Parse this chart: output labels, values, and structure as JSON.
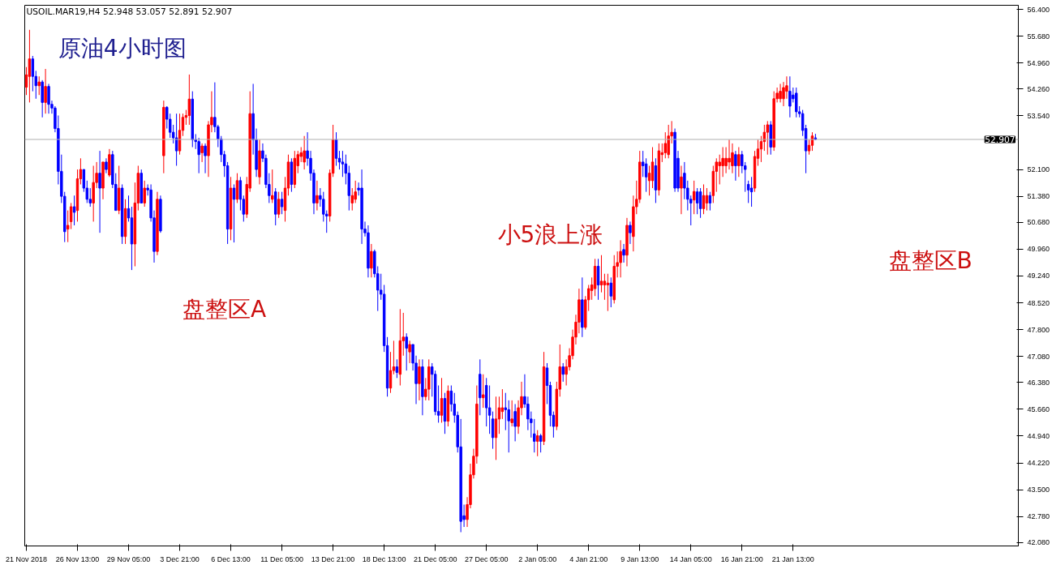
{
  "chart_data": {
    "type": "candlestick",
    "title": "USOIL.MAR19,H4  52.948 53.057 52.891 52.907",
    "annotations": [
      "原油4小时图",
      "盘整区A",
      "小5浪上涨",
      "盘整区B"
    ],
    "categories": [
      "21 Nov 2018",
      null,
      null,
      null,
      null,
      null,
      null,
      null,
      null,
      null,
      null,
      null,
      null,
      null,
      null,
      null,
      "26 Nov 13:00",
      null,
      null,
      null,
      null,
      null,
      null,
      null,
      null,
      null,
      null,
      null,
      null,
      null,
      null,
      null,
      "29 Nov 05:00",
      null,
      null,
      null,
      null,
      null,
      null,
      null,
      null,
      null,
      null,
      null,
      null,
      null,
      null,
      null,
      "3 Dec 21:00",
      null,
      null,
      null,
      null,
      null,
      null,
      null,
      null,
      null,
      null,
      null,
      null,
      null,
      null,
      null,
      "6 Dec 13:00",
      null,
      null,
      null,
      null,
      null,
      null,
      null,
      null,
      null,
      null,
      null,
      null,
      null,
      null,
      null,
      "11 Dec 05:00",
      null,
      null,
      null,
      null,
      null,
      null,
      null,
      null,
      null,
      null,
      null,
      null,
      null,
      null,
      null,
      "13 Dec 21:00",
      null,
      null,
      null,
      null,
      null,
      null,
      null,
      null,
      null,
      null,
      null,
      null,
      null,
      null,
      null,
      "18 Dec 13:00",
      null,
      null,
      null,
      null,
      null,
      null,
      null,
      null,
      null,
      null,
      null,
      null,
      null,
      null,
      null,
      "21 Dec 05:00",
      null,
      null,
      null,
      null,
      null,
      null,
      null,
      null,
      null,
      null,
      null,
      null,
      null,
      null,
      null,
      "27 Dec 05:00",
      null,
      null,
      null,
      null,
      null,
      null,
      null,
      null,
      null,
      null,
      null,
      null,
      null,
      null,
      null,
      "2 Jan 05:00",
      null,
      null,
      null,
      null,
      null,
      null,
      null,
      null,
      null,
      null,
      null,
      null,
      null,
      null,
      null,
      "4 Jan 21:00",
      null,
      null,
      null,
      null,
      null,
      null,
      null,
      null,
      null,
      null,
      null,
      null,
      null,
      null,
      null,
      "9 Jan 13:00",
      null,
      null,
      null,
      null,
      null,
      null,
      null,
      null,
      null,
      null,
      null,
      null,
      null,
      null,
      null,
      "14 Jan 05:00",
      null,
      null,
      null,
      null,
      null,
      null,
      null,
      null,
      null,
      null,
      null,
      null,
      null,
      null,
      null,
      "16 Jan 21:00",
      null,
      null,
      null,
      null,
      null,
      null,
      null,
      null,
      null,
      null,
      null,
      null,
      null,
      null,
      null,
      "21 Jan 13:00",
      null,
      null,
      null,
      null,
      null,
      null,
      null,
      null,
      null,
      null,
      null,
      null,
      null,
      null,
      null,
      null,
      null,
      null,
      null,
      null,
      null,
      null,
      null,
      null,
      null,
      null,
      null,
      null,
      null,
      null,
      null,
      null,
      null,
      null,
      null,
      null,
      null,
      null,
      null,
      null,
      null,
      null,
      null,
      null,
      null,
      null,
      null,
      null,
      null,
      null,
      null,
      null,
      null,
      null,
      null,
      null,
      null,
      null,
      null,
      null,
      null,
      null,
      null,
      null,
      null,
      null,
      null,
      null,
      null,
      null
    ],
    "ohlc": [
      [
        54.31,
        54.85,
        54.1,
        54.64
      ],
      [
        54.6,
        55.85,
        53.9,
        55.07
      ],
      [
        55.07,
        55.15,
        54.2,
        54.6
      ],
      [
        54.6,
        54.75,
        54.0,
        54.35
      ],
      [
        54.35,
        54.6,
        54.1,
        54.45
      ],
      [
        54.45,
        54.5,
        53.5,
        53.9
      ],
      [
        53.9,
        54.8,
        53.6,
        54.33
      ],
      [
        54.33,
        54.4,
        53.6,
        53.85
      ],
      [
        53.85,
        53.95,
        53.6,
        53.75
      ],
      [
        53.75,
        53.8,
        53.1,
        53.2
      ],
      [
        53.2,
        53.55,
        51.7,
        52.05
      ],
      [
        52.05,
        52.5,
        51.2,
        51.38
      ],
      [
        51.38,
        51.5,
        50.15,
        50.43
      ],
      [
        50.5,
        51.0,
        50.15,
        50.6
      ],
      [
        50.7,
        51.2,
        50.5,
        51.1
      ],
      [
        51.1,
        51.4,
        50.6,
        50.95
      ],
      [
        51.0,
        52.1,
        50.7,
        51.85
      ],
      [
        51.85,
        52.4,
        51.7,
        52.1
      ],
      [
        52.1,
        52.1,
        51.5,
        51.6
      ],
      [
        51.6,
        51.8,
        51.2,
        51.3
      ],
      [
        51.3,
        51.6,
        51.1,
        51.2
      ],
      [
        51.2,
        52.2,
        50.7,
        51.75
      ],
      [
        51.75,
        52.3,
        51.6,
        52.0
      ],
      [
        52.0,
        52.6,
        50.4,
        51.6
      ],
      [
        51.6,
        52.3,
        51.3,
        52.3
      ],
      [
        52.3,
        52.4,
        52.0,
        52.1
      ],
      [
        51.95,
        52.65,
        51.9,
        52.5
      ],
      [
        52.5,
        52.6,
        51.6,
        51.7
      ],
      [
        51.7,
        52.0,
        51.0,
        51.0
      ],
      [
        51.0,
        52.2,
        50.9,
        51.6
      ],
      [
        51.6,
        51.7,
        50.1,
        50.3
      ],
      [
        50.3,
        51.3,
        50.1,
        51.05
      ],
      [
        51.05,
        51.4,
        50.7,
        50.8
      ],
      [
        50.8,
        51.1,
        49.4,
        50.1
      ],
      [
        50.1,
        51.75,
        49.5,
        51.2
      ],
      [
        51.2,
        52.2,
        51.0,
        52.0
      ],
      [
        52.0,
        52.1,
        51.2,
        51.2
      ],
      [
        51.2,
        51.8,
        51.1,
        51.6
      ],
      [
        51.6,
        51.7,
        51.4,
        51.55
      ],
      [
        51.55,
        51.7,
        50.7,
        50.8
      ],
      [
        50.8,
        51.0,
        49.6,
        49.9
      ],
      [
        49.9,
        51.5,
        49.8,
        51.3
      ],
      [
        51.3,
        51.4,
        50.4,
        50.45
      ],
      [
        52.47,
        53.95,
        52.0,
        53.77
      ],
      [
        53.77,
        53.8,
        53.2,
        53.45
      ],
      [
        53.45,
        53.6,
        52.95,
        53.1
      ],
      [
        53.1,
        53.3,
        52.8,
        52.95
      ],
      [
        52.95,
        53.6,
        52.2,
        52.6
      ],
      [
        52.6,
        53.6,
        52.5,
        53.15
      ],
      [
        53.15,
        53.6,
        53.0,
        53.5
      ],
      [
        53.5,
        53.7,
        53.3,
        53.55
      ],
      [
        53.55,
        54.65,
        53.3,
        53.99
      ],
      [
        53.99,
        54.2,
        52.7,
        52.9
      ],
      [
        52.9,
        53.05,
        52.65,
        52.85
      ],
      [
        52.85,
        52.95,
        52.0,
        52.5
      ],
      [
        52.55,
        52.8,
        52.3,
        52.73
      ],
      [
        52.73,
        52.8,
        52.0,
        52.47
      ],
      [
        52.47,
        53.4,
        51.9,
        53.3
      ],
      [
        53.3,
        54.2,
        53.1,
        53.5
      ],
      [
        53.5,
        54.44,
        53.1,
        53.25
      ],
      [
        53.25,
        53.3,
        52.7,
        52.92
      ],
      [
        52.92,
        53.0,
        52.3,
        52.5
      ],
      [
        52.5,
        52.6,
        51.9,
        52.2
      ],
      [
        52.2,
        52.3,
        50.1,
        50.5
      ],
      [
        50.5,
        51.9,
        50.2,
        51.6
      ],
      [
        51.6,
        51.7,
        50.14,
        51.3
      ],
      [
        51.3,
        52.0,
        51.2,
        51.8
      ],
      [
        51.8,
        51.9,
        51.0,
        51.3
      ],
      [
        51.3,
        51.4,
        50.7,
        50.9
      ],
      [
        50.9,
        51.9,
        50.8,
        51.7
      ],
      [
        51.6,
        54.2,
        51.5,
        53.6
      ],
      [
        53.6,
        54.4,
        52.5,
        52.9
      ],
      [
        52.9,
        53.2,
        51.9,
        52.1
      ],
      [
        51.9,
        52.9,
        51.7,
        52.6
      ],
      [
        52.6,
        52.8,
        52.3,
        52.4
      ],
      [
        52.4,
        52.5,
        51.6,
        51.7
      ],
      [
        51.7,
        52.0,
        51.2,
        51.4
      ],
      [
        51.3,
        52.1,
        51.2,
        51.4
      ],
      [
        51.5,
        51.6,
        50.6,
        50.9
      ],
      [
        50.9,
        51.5,
        50.8,
        51.3
      ],
      [
        51.3,
        51.5,
        50.9,
        51.1
      ],
      [
        51.0,
        51.9,
        50.7,
        51.6
      ],
      [
        51.6,
        52.5,
        51.4,
        52.3
      ],
      [
        52.3,
        52.4,
        51.5,
        51.7
      ],
      [
        51.7,
        52.6,
        51.6,
        52.4
      ],
      [
        52.2,
        52.6,
        52.0,
        52.5
      ],
      [
        52.45,
        52.7,
        52.3,
        52.55
      ],
      [
        52.3,
        53.0,
        52.1,
        52.6
      ],
      [
        52.6,
        53.1,
        52.2,
        52.4
      ],
      [
        52.4,
        52.6,
        51.8,
        52.0
      ],
      [
        52.0,
        52.1,
        50.9,
        51.2
      ],
      [
        51.2,
        51.8,
        51.0,
        51.4
      ],
      [
        51.4,
        51.6,
        51.1,
        51.3
      ],
      [
        51.3,
        51.5,
        50.7,
        50.9
      ],
      [
        50.9,
        51.0,
        50.4,
        50.85
      ],
      [
        50.85,
        52.1,
        50.7,
        52.0
      ],
      [
        52.0,
        53.3,
        51.9,
        52.9
      ],
      [
        52.9,
        53.1,
        52.2,
        52.4
      ],
      [
        52.4,
        52.6,
        52.1,
        52.3
      ],
      [
        52.3,
        52.6,
        51.9,
        52.25
      ],
      [
        52.25,
        52.5,
        51.7,
        52.0
      ],
      [
        52.0,
        52.2,
        51.0,
        51.4
      ],
      [
        51.2,
        51.6,
        51.0,
        51.4
      ],
      [
        51.3,
        51.8,
        51.2,
        51.5
      ],
      [
        51.6,
        51.75,
        51.4,
        51.55
      ],
      [
        51.6,
        52.1,
        50.1,
        50.5
      ],
      [
        50.5,
        50.7,
        50.3,
        50.4
      ],
      [
        50.4,
        50.6,
        49.2,
        49.45
      ],
      [
        49.45,
        50.1,
        49.2,
        49.9
      ],
      [
        49.9,
        49.95,
        49.2,
        49.3
      ],
      [
        49.3,
        49.5,
        48.3,
        48.86
      ],
      [
        48.86,
        49.3,
        48.6,
        48.75
      ],
      [
        48.75,
        49.0,
        47.2,
        47.37
      ],
      [
        47.37,
        47.6,
        46.0,
        46.23
      ],
      [
        46.23,
        47.2,
        46.1,
        46.7
      ],
      [
        46.7,
        47.5,
        46.6,
        46.8
      ],
      [
        46.8,
        47.0,
        46.5,
        46.65
      ],
      [
        46.6,
        48.35,
        46.3,
        47.5
      ],
      [
        47.5,
        48.25,
        47.1,
        47.6
      ],
      [
        47.6,
        47.7,
        46.7,
        47.3
      ],
      [
        47.2,
        47.5,
        46.9,
        47.4
      ],
      [
        47.4,
        47.4,
        46.7,
        46.9
      ],
      [
        46.9,
        47.1,
        45.8,
        46.35
      ],
      [
        46.35,
        47.0,
        45.9,
        46.8
      ],
      [
        46.8,
        47.0,
        45.5,
        46.0
      ],
      [
        46.0,
        46.5,
        45.9,
        46.2
      ],
      [
        46.2,
        47.0,
        45.9,
        46.8
      ],
      [
        46.8,
        46.9,
        46.0,
        46.6
      ],
      [
        46.6,
        46.7,
        45.5,
        45.6
      ],
      [
        45.6,
        46.3,
        45.3,
        45.5
      ],
      [
        45.5,
        46.5,
        45.3,
        45.95
      ],
      [
        45.95,
        46.1,
        45.0,
        45.34
      ],
      [
        45.34,
        46.3,
        45.2,
        46.15
      ],
      [
        46.15,
        46.3,
        45.6,
        45.8
      ],
      [
        45.8,
        46.1,
        45.3,
        45.5
      ],
      [
        45.5,
        45.6,
        44.5,
        44.65
      ],
      [
        44.65,
        45.4,
        42.36,
        42.65
      ],
      [
        42.8,
        43.1,
        42.5,
        42.7
      ],
      [
        42.7,
        43.3,
        42.5,
        43.1
      ],
      [
        43.1,
        44.2,
        43.0,
        43.9
      ],
      [
        43.9,
        44.6,
        43.8,
        44.4
      ],
      [
        44.4,
        46.3,
        44.2,
        45.8
      ],
      [
        46.6,
        47.0,
        45.5,
        45.97
      ],
      [
        45.97,
        46.6,
        45.7,
        46.05
      ],
      [
        46.3,
        46.5,
        45.2,
        45.7
      ],
      [
        45.7,
        46.3,
        45.0,
        45.5
      ],
      [
        45.4,
        45.6,
        44.6,
        44.9
      ],
      [
        44.9,
        46.0,
        44.3,
        45.4
      ],
      [
        45.4,
        46.0,
        45.0,
        45.7
      ],
      [
        45.6,
        46.2,
        45.4,
        45.7
      ],
      [
        45.7,
        46.1,
        45.1,
        45.65
      ],
      [
        45.65,
        45.9,
        44.5,
        45.35
      ],
      [
        45.3,
        45.9,
        45.2,
        45.4
      ],
      [
        45.6,
        45.8,
        44.8,
        45.2
      ],
      [
        45.2,
        45.9,
        45.0,
        45.7
      ],
      [
        45.7,
        46.4,
        45.5,
        46.0
      ],
      [
        46.0,
        46.6,
        45.7,
        45.8
      ],
      [
        45.8,
        46.0,
        45.1,
        45.4
      ],
      [
        45.4,
        45.6,
        44.9,
        45.3
      ],
      [
        45.0,
        45.4,
        44.5,
        44.8
      ],
      [
        44.8,
        45.1,
        44.4,
        44.95
      ],
      [
        44.95,
        45.0,
        44.5,
        44.8
      ],
      [
        44.8,
        47.2,
        44.7,
        46.8
      ],
      [
        46.77,
        46.9,
        45.8,
        46.3
      ],
      [
        46.3,
        46.4,
        45.2,
        45.5
      ],
      [
        45.5,
        45.6,
        44.9,
        45.2
      ],
      [
        45.2,
        46.4,
        45.1,
        46.2
      ],
      [
        46.2,
        47.4,
        46.0,
        46.8
      ],
      [
        46.8,
        46.9,
        46.4,
        46.6
      ],
      [
        46.6,
        47.0,
        46.3,
        46.8
      ],
      [
        46.8,
        47.3,
        46.7,
        47.1
      ],
      [
        47.1,
        47.8,
        47.0,
        47.6
      ],
      [
        47.6,
        48.2,
        47.4,
        48.0
      ],
      [
        48.0,
        48.9,
        47.7,
        48.6
      ],
      [
        48.6,
        49.2,
        47.6,
        47.86
      ],
      [
        47.86,
        48.7,
        47.8,
        48.6
      ],
      [
        48.6,
        49.0,
        48.3,
        48.9
      ],
      [
        48.85,
        49.2,
        48.6,
        49.0
      ],
      [
        48.9,
        49.7,
        48.7,
        49.5
      ],
      [
        49.5,
        49.7,
        48.6,
        49.0
      ],
      [
        49.0,
        49.8,
        48.8,
        49.1
      ],
      [
        49.0,
        49.3,
        48.6,
        49.1
      ],
      [
        49.0,
        49.3,
        48.3,
        49.05
      ],
      [
        49.05,
        49.2,
        48.4,
        48.7
      ],
      [
        48.6,
        49.8,
        48.5,
        49.5
      ],
      [
        49.5,
        49.9,
        49.2,
        49.6
      ],
      [
        49.6,
        50.2,
        49.2,
        49.9
      ],
      [
        49.95,
        50.1,
        49.6,
        49.8
      ],
      [
        49.8,
        50.8,
        49.5,
        50.6
      ],
      [
        50.6,
        50.7,
        50.1,
        50.4
      ],
      [
        50.3,
        51.4,
        49.9,
        51.1
      ],
      [
        51.1,
        51.8,
        50.9,
        51.3
      ],
      [
        51.3,
        52.6,
        51.2,
        52.3
      ],
      [
        52.3,
        52.6,
        51.9,
        52.2
      ],
      [
        52.25,
        52.4,
        51.5,
        51.9
      ],
      [
        51.8,
        52.2,
        51.4,
        52.0
      ],
      [
        51.8,
        52.7,
        51.6,
        52.3
      ],
      [
        52.2,
        52.4,
        51.2,
        51.55
      ],
      [
        51.55,
        52.8,
        51.4,
        52.6
      ],
      [
        52.5,
        52.8,
        52.3,
        52.55
      ],
      [
        52.55,
        53.1,
        52.4,
        52.8
      ],
      [
        52.5,
        53.3,
        52.4,
        53.0
      ],
      [
        53.0,
        53.4,
        52.8,
        53.1
      ],
      [
        53.1,
        53.2,
        51.5,
        51.6
      ],
      [
        52.4,
        52.6,
        51.5,
        51.6
      ],
      [
        51.6,
        52.2,
        50.9,
        51.9
      ],
      [
        52.0,
        52.3,
        51.3,
        51.6
      ],
      [
        51.6,
        51.8,
        51.0,
        51.3
      ],
      [
        51.3,
        51.4,
        50.6,
        51.2
      ],
      [
        51.28,
        51.8,
        50.9,
        51.51
      ],
      [
        51.5,
        51.6,
        50.9,
        51.2
      ],
      [
        51.5,
        51.6,
        50.8,
        51.05
      ],
      [
        51.05,
        51.7,
        50.9,
        51.4
      ],
      [
        51.2,
        51.6,
        51.0,
        51.4
      ],
      [
        51.4,
        51.5,
        51.0,
        51.2
      ],
      [
        51.4,
        52.2,
        51.2,
        52.05
      ],
      [
        52.05,
        52.4,
        51.5,
        52.3
      ],
      [
        52.2,
        52.5,
        51.7,
        52.3
      ],
      [
        52.2,
        52.7,
        51.9,
        52.4
      ],
      [
        52.2,
        52.7,
        52.0,
        52.4
      ],
      [
        52.3,
        52.9,
        52.1,
        52.4
      ],
      [
        52.2,
        52.8,
        52.0,
        52.55
      ],
      [
        52.5,
        52.6,
        51.8,
        52.2
      ],
      [
        52.2,
        52.7,
        51.9,
        52.5
      ],
      [
        52.5,
        52.6,
        52.0,
        52.2
      ],
      [
        52.2,
        52.3,
        51.5,
        52.1
      ],
      [
        51.7,
        51.8,
        51.2,
        51.55
      ],
      [
        51.6,
        51.9,
        51.1,
        51.5
      ],
      [
        51.6,
        52.6,
        51.5,
        52.45
      ],
      [
        52.4,
        52.9,
        52.2,
        52.65
      ],
      [
        52.65,
        53.0,
        52.3,
        52.85
      ],
      [
        52.85,
        53.3,
        52.6,
        53.1
      ],
      [
        53.1,
        53.4,
        52.5,
        53.3
      ],
      [
        53.3,
        53.4,
        52.5,
        52.7
      ],
      [
        52.7,
        54.2,
        52.6,
        54.0
      ],
      [
        54.0,
        54.3,
        53.9,
        54.15
      ],
      [
        54.0,
        54.4,
        53.9,
        54.2
      ],
      [
        54.0,
        54.45,
        53.8,
        54.3
      ],
      [
        54.2,
        54.6,
        54.0,
        54.35
      ],
      [
        54.2,
        54.6,
        53.5,
        53.8
      ],
      [
        54.1,
        54.3,
        53.9,
        54.0
      ],
      [
        54.15,
        54.3,
        53.5,
        53.65
      ],
      [
        53.65,
        53.8,
        53.5,
        53.6
      ],
      [
        53.6,
        53.7,
        53.0,
        53.15
      ],
      [
        53.2,
        53.3,
        52.0,
        52.6
      ],
      [
        52.6,
        52.9,
        52.5,
        52.75
      ],
      [
        52.75,
        53.1,
        52.6,
        53.0
      ],
      [
        52.948,
        53.057,
        52.891,
        52.907
      ],
      null,
      null,
      null,
      null,
      null,
      null,
      null,
      null,
      null,
      null,
      null,
      null,
      null,
      null,
      null,
      null,
      null,
      null,
      null,
      null,
      null,
      null,
      null,
      null,
      null,
      null,
      null,
      null,
      null,
      null,
      null,
      null,
      null,
      null,
      null,
      null,
      null,
      null,
      null,
      null,
      null,
      null,
      null,
      null,
      null,
      null,
      null,
      null,
      null,
      null,
      null,
      null,
      null,
      null,
      null,
      null,
      null,
      null,
      null,
      null,
      null,
      null,
      null
    ],
    "ylim": [
      41.99,
      56.51
    ],
    "yticks": [
      {
        "value": 42.08,
        "label": "42.080"
      },
      {
        "value": 42.78,
        "label": "42.780"
      },
      {
        "value": 43.5,
        "label": "43.500"
      },
      {
        "value": 44.22,
        "label": "44.220"
      },
      {
        "value": 44.94,
        "label": "44.940"
      },
      {
        "value": 45.66,
        "label": "45.660"
      },
      {
        "value": 46.38,
        "label": "46.380"
      },
      {
        "value": 47.08,
        "label": "47.080"
      },
      {
        "value": 47.8,
        "label": "47.800"
      },
      {
        "value": 48.52,
        "label": "48.520"
      },
      {
        "value": 49.24,
        "label": "49.240"
      },
      {
        "value": 49.96,
        "label": "49.960"
      },
      {
        "value": 50.68,
        "label": "50.680"
      },
      {
        "value": 51.38,
        "label": "51.380"
      },
      {
        "value": 52.1,
        "label": "52.100"
      },
      {
        "value": 53.54,
        "label": "53.540"
      },
      {
        "value": 54.26,
        "label": "54.260"
      },
      {
        "value": 54.96,
        "label": "54.960"
      },
      {
        "value": 55.68,
        "label": "55.680"
      },
      {
        "value": 56.4,
        "label": "56.400"
      }
    ],
    "ref_lines": [
      {
        "axis": "y",
        "value": 52.907,
        "label": "52.907"
      }
    ]
  }
}
